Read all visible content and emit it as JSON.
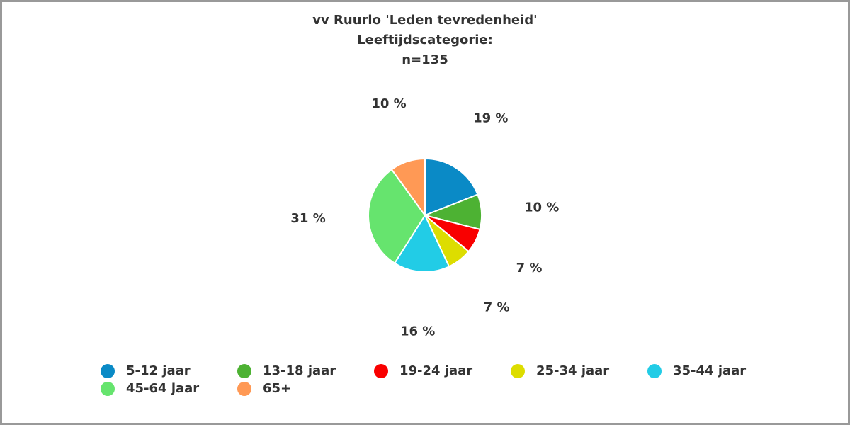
{
  "chart_data": {
    "type": "pie",
    "title": [
      "vv Ruurlo 'Leden tevredenheid'",
      "Leeftijdscategorie:",
      "n=135"
    ],
    "categories": [
      "5-12 jaar",
      "13-18 jaar",
      "19-24 jaar",
      "25-34 jaar",
      "35-44 jaar",
      "45-64 jaar",
      "65+"
    ],
    "values": [
      19,
      10,
      7,
      7,
      16,
      31,
      10
    ],
    "value_labels": [
      "19 %",
      "10 %",
      "7 %",
      "7 %",
      "16 %",
      "31 %",
      "10 %"
    ],
    "colors": [
      "#0a8ac6",
      "#4db233",
      "#f90000",
      "#dddd00",
      "#22cce6",
      "#66e46e",
      "#ff9955"
    ],
    "legend": "bottom"
  }
}
